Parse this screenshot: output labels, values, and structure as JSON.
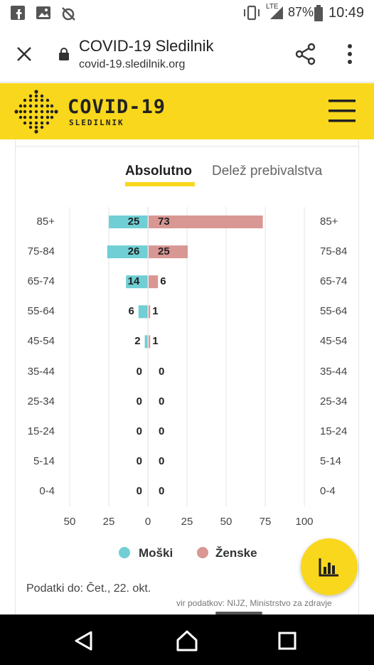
{
  "status_bar": {
    "network": "LTE",
    "battery": "87%",
    "time": "10:49"
  },
  "browser": {
    "title": "COVID-19 Sledilnik",
    "url": "covid-19.sledilnik.org"
  },
  "header": {
    "brand_main": "COVID-19",
    "brand_sub": "SLEDILNIK"
  },
  "tabs": [
    {
      "label": "Absolutno",
      "active": true
    },
    {
      "label": "Delež prebivalstva",
      "active": false
    }
  ],
  "chart_data": {
    "type": "bar",
    "orientation": "horizontal-diverging",
    "categories": [
      "85+",
      "75-84",
      "65-74",
      "55-64",
      "45-54",
      "35-44",
      "25-34",
      "15-24",
      "5-14",
      "0-4"
    ],
    "series": [
      {
        "name": "Moški",
        "color": "#6fcfd4",
        "values": [
          25,
          26,
          14,
          6,
          2,
          0,
          0,
          0,
          0,
          0
        ],
        "side": "left"
      },
      {
        "name": "Ženske",
        "color": "#d99793",
        "values": [
          73,
          25,
          6,
          1,
          1,
          0,
          0,
          0,
          0,
          0
        ],
        "side": "right"
      }
    ],
    "x_ticks": [
      "50",
      "25",
      "0",
      "25",
      "50",
      "75",
      "100"
    ],
    "xlim_left": 50,
    "xlim_right": 100,
    "grid": true,
    "legend_position": "bottom"
  },
  "footer": {
    "date": "Podatki do: Čet., 22. okt.",
    "source": "vir podatkov: NIJZ, Ministrstvo za zdravje"
  },
  "colors": {
    "brand_yellow": "#f9d71c",
    "male": "#6fcfd4",
    "female": "#d99793"
  }
}
